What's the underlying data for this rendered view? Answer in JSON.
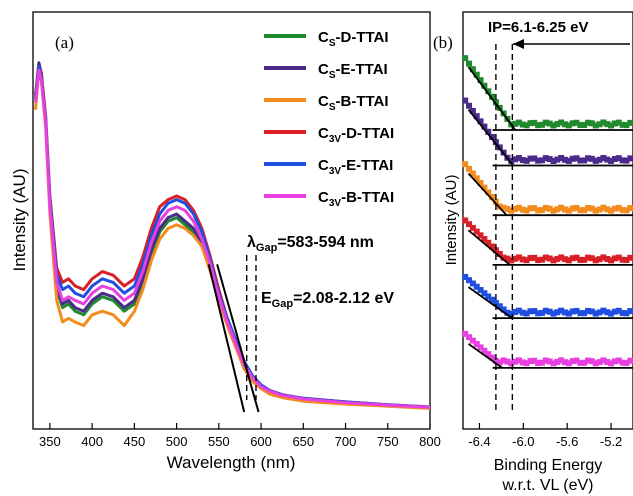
{
  "chart_data": [
    {
      "type": "line",
      "panel_label": "(a)",
      "xlabel": "Wavelength (nm)",
      "ylabel": "Intensity (AU)",
      "xlim": [
        330,
        800
      ],
      "ylim": [
        0,
        1.0
      ],
      "x_ticks": [
        "350",
        "400",
        "450",
        "500",
        "550",
        "600",
        "650",
        "700",
        "750",
        "800"
      ],
      "legend_position": "top-right",
      "series": [
        {
          "name_main": "C",
          "name_sub": "S",
          "name_rest": "-D-TTAI",
          "color": "#1f8a2e",
          "x": [
            333,
            337,
            340,
            345,
            350,
            358,
            365,
            372,
            380,
            390,
            400,
            412,
            425,
            438,
            450,
            460,
            470,
            480,
            490,
            500,
            510,
            520,
            530,
            540,
            550,
            560,
            570,
            580,
            590,
            600,
            610,
            625,
            650,
            700,
            750,
            800
          ],
          "y": [
            0.87,
            0.96,
            0.93,
            0.8,
            0.57,
            0.34,
            0.29,
            0.3,
            0.28,
            0.27,
            0.3,
            0.32,
            0.31,
            0.28,
            0.3,
            0.36,
            0.44,
            0.5,
            0.53,
            0.54,
            0.52,
            0.5,
            0.47,
            0.4,
            0.32,
            0.25,
            0.19,
            0.13,
            0.09,
            0.07,
            0.055,
            0.045,
            0.035,
            0.025,
            0.018,
            0.012
          ]
        },
        {
          "name_main": "C",
          "name_sub": "S",
          "name_rest": "-E-TTAI",
          "color": "#4b2a8c",
          "x": [
            333,
            337,
            340,
            345,
            350,
            358,
            365,
            372,
            380,
            390,
            400,
            412,
            425,
            438,
            450,
            460,
            470,
            480,
            490,
            500,
            510,
            520,
            530,
            540,
            550,
            560,
            570,
            580,
            590,
            600,
            610,
            625,
            650,
            700,
            750,
            800
          ],
          "y": [
            0.88,
            0.97,
            0.94,
            0.81,
            0.58,
            0.35,
            0.3,
            0.31,
            0.29,
            0.28,
            0.31,
            0.33,
            0.32,
            0.29,
            0.31,
            0.37,
            0.45,
            0.51,
            0.54,
            0.55,
            0.53,
            0.51,
            0.47,
            0.4,
            0.32,
            0.25,
            0.19,
            0.13,
            0.09,
            0.07,
            0.055,
            0.045,
            0.035,
            0.025,
            0.018,
            0.012
          ]
        },
        {
          "name_main": "C",
          "name_sub": "S",
          "name_rest": "-B-TTAI",
          "color": "#f28c1e",
          "x": [
            333,
            337,
            340,
            345,
            350,
            358,
            365,
            372,
            380,
            390,
            400,
            412,
            425,
            438,
            450,
            460,
            470,
            480,
            490,
            500,
            510,
            520,
            530,
            540,
            550,
            560,
            570,
            580,
            590,
            600,
            610,
            625,
            650,
            700,
            750,
            800
          ],
          "y": [
            0.84,
            0.95,
            0.92,
            0.79,
            0.55,
            0.31,
            0.25,
            0.26,
            0.25,
            0.24,
            0.27,
            0.28,
            0.27,
            0.24,
            0.28,
            0.34,
            0.42,
            0.48,
            0.51,
            0.52,
            0.51,
            0.49,
            0.46,
            0.39,
            0.31,
            0.24,
            0.18,
            0.12,
            0.085,
            0.065,
            0.05,
            0.04,
            0.03,
            0.022,
            0.016,
            0.01
          ]
        },
        {
          "name_main": "C",
          "name_sub": "3V",
          "name_rest": "-D-TTAI",
          "color": "#d92027",
          "x": [
            333,
            337,
            340,
            345,
            350,
            358,
            365,
            372,
            380,
            390,
            400,
            412,
            425,
            438,
            450,
            460,
            470,
            480,
            490,
            500,
            510,
            520,
            530,
            540,
            550,
            560,
            570,
            580,
            590,
            600,
            610,
            625,
            650,
            700,
            750,
            800
          ],
          "y": [
            0.88,
            0.96,
            0.94,
            0.82,
            0.6,
            0.4,
            0.36,
            0.37,
            0.35,
            0.34,
            0.37,
            0.39,
            0.38,
            0.35,
            0.37,
            0.43,
            0.51,
            0.57,
            0.59,
            0.6,
            0.59,
            0.56,
            0.51,
            0.43,
            0.34,
            0.26,
            0.2,
            0.14,
            0.1,
            0.075,
            0.06,
            0.048,
            0.038,
            0.028,
            0.02,
            0.014
          ]
        },
        {
          "name_main": "C",
          "name_sub": "3V",
          "name_rest": "-E-TTAI",
          "color": "#1f4fe0",
          "x": [
            333,
            337,
            340,
            345,
            350,
            358,
            365,
            372,
            380,
            390,
            400,
            412,
            425,
            438,
            450,
            460,
            470,
            480,
            490,
            500,
            510,
            520,
            530,
            540,
            550,
            560,
            570,
            580,
            590,
            600,
            610,
            625,
            650,
            700,
            750,
            800
          ],
          "y": [
            0.87,
            0.96,
            0.93,
            0.81,
            0.59,
            0.38,
            0.34,
            0.35,
            0.33,
            0.32,
            0.35,
            0.37,
            0.36,
            0.33,
            0.35,
            0.41,
            0.49,
            0.55,
            0.58,
            0.59,
            0.58,
            0.55,
            0.5,
            0.42,
            0.33,
            0.26,
            0.2,
            0.14,
            0.1,
            0.075,
            0.06,
            0.048,
            0.038,
            0.028,
            0.02,
            0.014
          ]
        },
        {
          "name_main": "C",
          "name_sub": "3V",
          "name_rest": "-B-TTAI",
          "color": "#e840e0",
          "x": [
            333,
            337,
            340,
            345,
            350,
            358,
            365,
            372,
            380,
            390,
            400,
            412,
            425,
            438,
            450,
            460,
            470,
            480,
            490,
            500,
            510,
            520,
            530,
            540,
            550,
            560,
            570,
            580,
            590,
            600,
            610,
            625,
            650,
            700,
            750,
            800
          ],
          "y": [
            0.86,
            0.95,
            0.92,
            0.8,
            0.57,
            0.36,
            0.31,
            0.32,
            0.31,
            0.3,
            0.33,
            0.35,
            0.34,
            0.31,
            0.33,
            0.39,
            0.47,
            0.53,
            0.56,
            0.57,
            0.56,
            0.53,
            0.48,
            0.41,
            0.32,
            0.25,
            0.19,
            0.13,
            0.095,
            0.07,
            0.058,
            0.046,
            0.036,
            0.026,
            0.019,
            0.013
          ]
        }
      ],
      "tangent_lines": [
        {
          "x": [
            538,
            580
          ],
          "y": [
            0.41,
            0.0
          ]
        },
        {
          "x": [
            548,
            597
          ],
          "y": [
            0.41,
            0.0
          ]
        }
      ],
      "marker_lines_x": [
        583,
        594
      ],
      "annotations": {
        "lambda_symbol": "λ",
        "lambda_sub": "Gap",
        "lambda_text": "=583-594 nm",
        "e_main": "E",
        "e_sub": "Gap",
        "e_text": "=2.08-2.12 eV"
      }
    },
    {
      "type": "scatter",
      "panel_label": "(b)",
      "xlabel_line1": "Binding Energy",
      "xlabel_line2": "w.r.t. VL (eV)",
      "ylabel": "Intensity (AU)",
      "xlim": [
        -6.55,
        -5.0
      ],
      "x_ticks": [
        "-6.4",
        "-6.0",
        "-5.6",
        "-5.2"
      ],
      "marker_lines_x": [
        -6.25,
        -6.1
      ],
      "annotation": "IP=6.1-6.25 eV",
      "series": [
        {
          "color": "#1f8a2e",
          "start": 0.0,
          "knee": -6.1,
          "baseline": 0.2
        },
        {
          "color": "#4b2a8c",
          "start": 0.12,
          "knee": -6.12,
          "baseline": 0.3
        },
        {
          "color": "#f28c1e",
          "start": 0.3,
          "knee": -6.18,
          "baseline": 0.44
        },
        {
          "color": "#d92027",
          "start": 0.46,
          "knee": -6.15,
          "baseline": 0.58
        },
        {
          "color": "#1f4fe0",
          "start": 0.62,
          "knee": -6.13,
          "baseline": 0.73
        },
        {
          "color": "#e840e0",
          "start": 0.78,
          "knee": -6.22,
          "baseline": 0.87
        }
      ]
    }
  ]
}
